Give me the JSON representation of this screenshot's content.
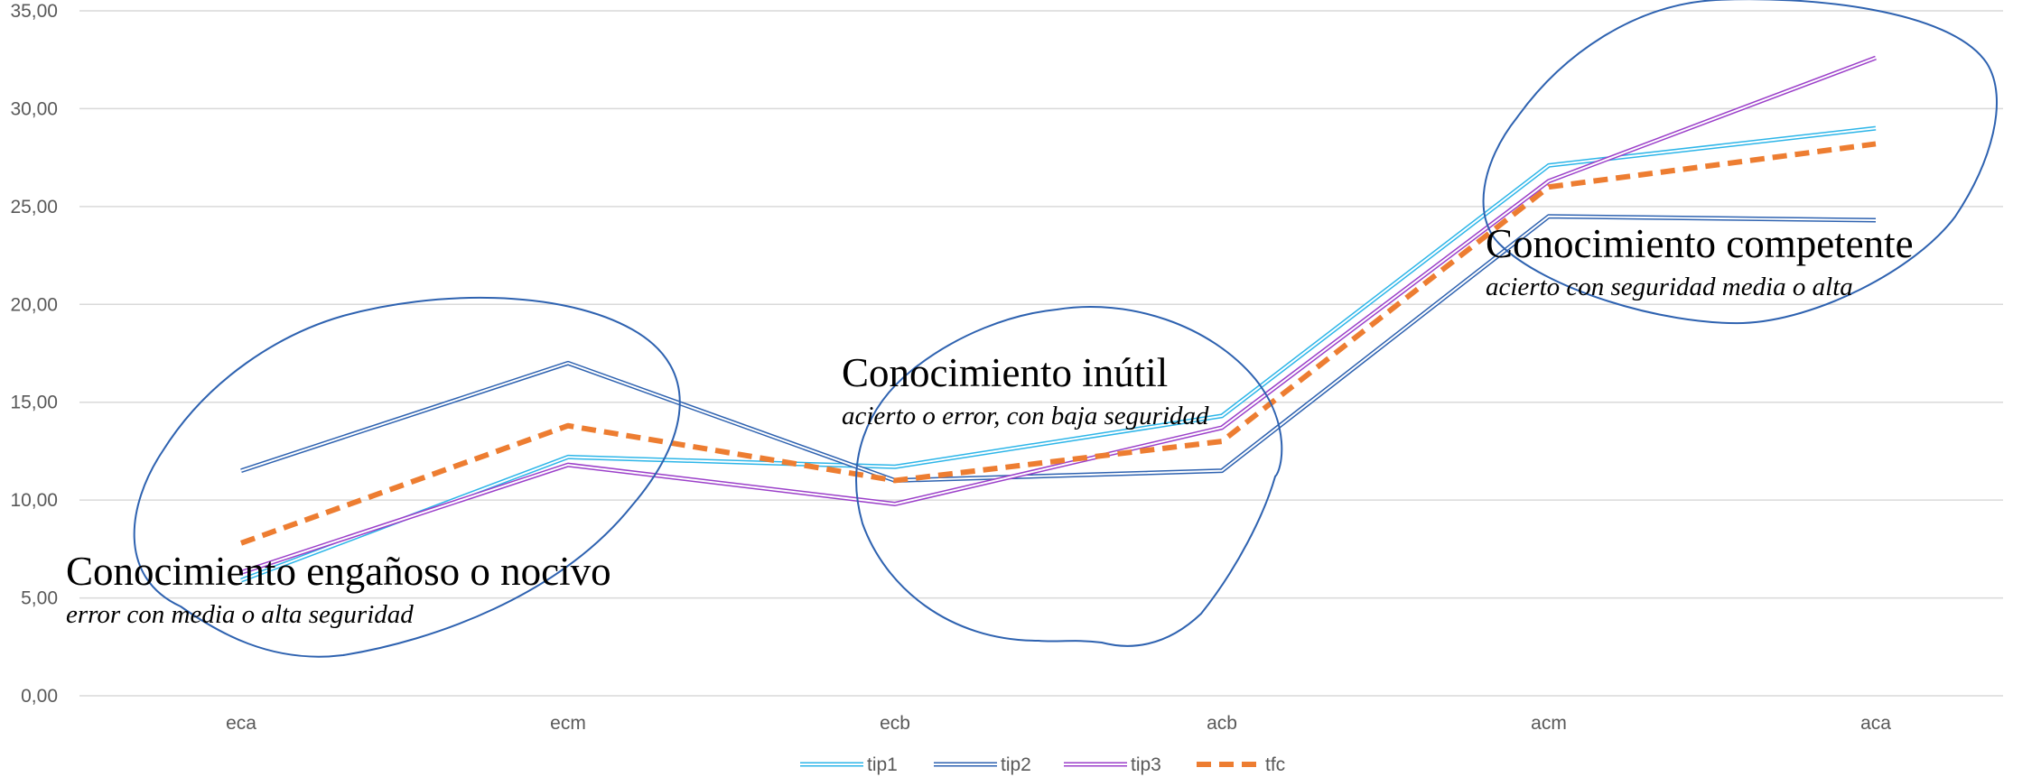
{
  "chart_data": {
    "type": "line",
    "categories": [
      "eca",
      "ecm",
      "ecb",
      "acb",
      "acm",
      "aca"
    ],
    "ylim": [
      0,
      35
    ],
    "yticks": [
      "0,00",
      "5,00",
      "10,00",
      "15,00",
      "20,00",
      "25,00",
      "30,00",
      "35,00"
    ],
    "grid": "horizontal",
    "legend": "bottom",
    "series": [
      {
        "name": "tip1",
        "color": "#2CB5E8",
        "style": "double",
        "values": [
          5.9,
          12.2,
          11.7,
          14.3,
          27.1,
          29.0
        ]
      },
      {
        "name": "tip2",
        "color": "#2E62B0",
        "style": "double",
        "values": [
          11.5,
          17.0,
          11.0,
          11.5,
          24.5,
          24.3
        ]
      },
      {
        "name": "tip3",
        "color": "#9B3FC9",
        "style": "double",
        "values": [
          6.3,
          11.8,
          9.8,
          13.7,
          26.3,
          32.6
        ]
      },
      {
        "name": "tfc",
        "color": "#ED7D31",
        "style": "dashed",
        "values": [
          7.8,
          13.8,
          11.0,
          13.0,
          26.0,
          28.2
        ]
      }
    ],
    "annotations": [
      {
        "title": "Conocimiento engañoso o nocivo",
        "subtitle": "error con media o alta seguridad"
      },
      {
        "title": "Conocimiento inútil",
        "subtitle": "acierto o error, con baja seguridad"
      },
      {
        "title": "Conocimiento competente",
        "subtitle": "acierto con seguridad media o alta"
      }
    ]
  }
}
